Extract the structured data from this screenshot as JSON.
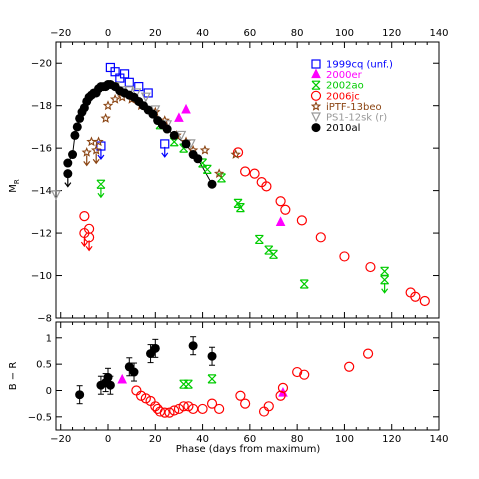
{
  "chart_data": [
    {
      "type": "scatter",
      "title": "",
      "xlabel": "Phase (days from maximum)",
      "ylabel": "M_R",
      "ylim": [
        -8,
        -21
      ],
      "xlim": [
        -22,
        140
      ],
      "x_ticks": [
        -20,
        0,
        20,
        40,
        60,
        80,
        100,
        120,
        140
      ],
      "y_ticks": [
        -20,
        -18,
        -16,
        -14,
        -12,
        -10,
        -8
      ],
      "y_tick_labels": [
        "−20",
        "−18",
        "−16",
        "−14",
        "−12",
        "−10",
        "−8"
      ],
      "x_tick_labels": [
        "−20",
        "0",
        "20",
        "40",
        "60",
        "80",
        "100",
        "120",
        "140"
      ],
      "grid": false,
      "legend_position": "top-right",
      "series": [
        {
          "name": "1999cq (unf.)",
          "color": "#0000ff",
          "marker": "square",
          "points": [
            [
              1,
              -19.8
            ],
            [
              3,
              -19.6
            ],
            [
              5,
              -19.3
            ],
            [
              7,
              -19.5
            ],
            [
              9,
              -19.1
            ],
            [
              13,
              -18.9
            ],
            [
              17,
              -18.6
            ]
          ],
          "limits": [
            [
              -3,
              -16.1
            ],
            [
              24,
              -16.2
            ]
          ]
        },
        {
          "name": "2000er",
          "color": "#ff00ff",
          "marker": "triangle",
          "points": [
            [
              33,
              -17.8
            ],
            [
              73,
              -12.5
            ],
            [
              30,
              -17.4
            ]
          ]
        },
        {
          "name": "2002ao",
          "color": "#00cc00",
          "marker": "star4",
          "points": [
            [
              28,
              -16.3
            ],
            [
              32,
              -16.0
            ],
            [
              40,
              -15.3
            ],
            [
              42,
              -15.0
            ],
            [
              48,
              -14.6
            ],
            [
              55,
              -13.4
            ],
            [
              56,
              -13.2
            ],
            [
              64,
              -11.7
            ],
            [
              68,
              -11.2
            ],
            [
              70,
              -11.0
            ],
            [
              83,
              -9.6
            ],
            [
              117,
              -10.2
            ],
            [
              22,
              -17.1
            ]
          ],
          "limits": [
            [
              -3,
              -14.3
            ],
            [
              117,
              -9.8
            ]
          ]
        },
        {
          "name": "2006jc",
          "color": "#ff0000",
          "marker": "circle-open",
          "points": [
            [
              -10,
              -12.8
            ],
            [
              -8,
              -12.2
            ],
            [
              55,
              -15.8
            ],
            [
              58,
              -14.9
            ],
            [
              62,
              -14.8
            ],
            [
              65,
              -14.4
            ],
            [
              67,
              -14.2
            ],
            [
              73,
              -13.5
            ],
            [
              75,
              -13.1
            ],
            [
              82,
              -12.6
            ],
            [
              90,
              -11.8
            ],
            [
              100,
              -10.9
            ],
            [
              111,
              -10.4
            ],
            [
              128,
              -9.2
            ],
            [
              130,
              -9.0
            ],
            [
              134,
              -8.8
            ]
          ],
          "limits": [
            [
              -10,
              -12.0
            ],
            [
              -8,
              -11.8
            ]
          ]
        },
        {
          "name": "iPTF-13beo",
          "color": "#8b4513",
          "marker": "star",
          "points": [
            [
              -7,
              -16.3
            ],
            [
              -4,
              -16.3
            ],
            [
              -1,
              -17.4
            ],
            [
              0,
              -18.0
            ],
            [
              3,
              -18.3
            ],
            [
              6,
              -18.4
            ],
            [
              10,
              -18.3
            ],
            [
              14,
              -18.0
            ],
            [
              20,
              -17.7
            ],
            [
              24,
              -17.3
            ],
            [
              29,
              -16.6
            ],
            [
              33,
              -16.3
            ],
            [
              36,
              -15.9
            ],
            [
              41,
              -15.9
            ],
            [
              47,
              -14.8
            ],
            [
              54,
              -15.7
            ]
          ],
          "limits": [
            [
              -9,
              -15.8
            ],
            [
              -5,
              -15.9
            ]
          ]
        },
        {
          "name": "PS1-12sk (r)",
          "color": "#999999",
          "marker": "triangle-down",
          "points": [
            [
              -22,
              -13.8
            ],
            [
              3,
              -18.9
            ],
            [
              6,
              -18.7
            ],
            [
              9,
              -18.7
            ],
            [
              12,
              -18.6
            ],
            [
              16,
              -18.4
            ],
            [
              20,
              -17.8
            ],
            [
              25,
              -17.1
            ],
            [
              31,
              -16.6
            ],
            [
              35,
              -16.2
            ]
          ]
        },
        {
          "name": "2010al",
          "color": "#000000",
          "marker": "circle-filled",
          "points": [
            [
              -17,
              -15.3
            ],
            [
              -15,
              -15.7
            ],
            [
              -14,
              -16.6
            ],
            [
              -13,
              -17.0
            ],
            [
              -12,
              -17.4
            ],
            [
              -11,
              -17.7
            ],
            [
              -10,
              -17.9
            ],
            [
              -9,
              -18.2
            ],
            [
              -8,
              -18.4
            ],
            [
              -7,
              -18.5
            ],
            [
              -6,
              -18.6
            ],
            [
              -5,
              -18.6
            ],
            [
              -4,
              -18.8
            ],
            [
              -3,
              -18.9
            ],
            [
              -2,
              -18.9
            ],
            [
              -1,
              -18.9
            ],
            [
              0,
              -19.0
            ],
            [
              1,
              -19.0
            ],
            [
              3,
              -18.9
            ],
            [
              5,
              -18.7
            ],
            [
              7,
              -18.6
            ],
            [
              9,
              -18.5
            ],
            [
              11,
              -18.4
            ],
            [
              13,
              -18.2
            ],
            [
              15,
              -18.0
            ],
            [
              17,
              -17.8
            ],
            [
              19,
              -17.6
            ],
            [
              21,
              -17.3
            ],
            [
              23,
              -17.1
            ],
            [
              25,
              -16.9
            ],
            [
              28,
              -16.6
            ],
            [
              33,
              -16.2
            ],
            [
              36,
              -15.7
            ],
            [
              38,
              -15.5
            ],
            [
              44,
              -14.3
            ]
          ],
          "limits": [
            [
              -17,
              -14.8
            ]
          ]
        }
      ]
    },
    {
      "type": "scatter",
      "title": "",
      "xlabel": "Phase (days from maximum)",
      "ylabel": "B − R",
      "ylim": [
        -0.75,
        1.3
      ],
      "xlim": [
        -22,
        140
      ],
      "x_ticks": [
        -20,
        0,
        20,
        40,
        60,
        80,
        100,
        120,
        140
      ],
      "y_ticks": [
        -0.5,
        0,
        0.5,
        1
      ],
      "y_tick_labels": [
        "−0.5",
        "0",
        "0.5",
        "1"
      ],
      "x_tick_labels": [
        "−20",
        "0",
        "20",
        "40",
        "60",
        "80",
        "100",
        "120",
        "140"
      ],
      "grid": false,
      "series": [
        {
          "name": "2010al",
          "color": "#000000",
          "marker": "circle-filled",
          "points": [
            [
              -12,
              -0.08
            ],
            [
              -3,
              0.1
            ],
            [
              -1,
              0.15
            ],
            [
              0,
              0.25
            ],
            [
              1,
              0.1
            ],
            [
              9,
              0.45
            ],
            [
              11,
              0.35
            ],
            [
              18,
              0.7
            ],
            [
              20,
              0.8
            ],
            [
              36,
              0.85
            ],
            [
              44,
              0.65
            ]
          ]
        },
        {
          "name": "2000er",
          "color": "#ff00ff",
          "marker": "triangle",
          "points": [
            [
              6,
              0.2
            ],
            [
              74,
              -0.05
            ]
          ]
        },
        {
          "name": "2002ao",
          "color": "#00cc00",
          "marker": "star4",
          "points": [
            [
              32,
              0.12
            ],
            [
              34,
              0.12
            ],
            [
              44,
              0.22
            ]
          ]
        },
        {
          "name": "2006jc",
          "color": "#ff0000",
          "marker": "circle-open",
          "points": [
            [
              12,
              0.0
            ],
            [
              14,
              -0.1
            ],
            [
              16,
              -0.15
            ],
            [
              18,
              -0.2
            ],
            [
              20,
              -0.3
            ],
            [
              21,
              -0.35
            ],
            [
              22,
              -0.4
            ],
            [
              24,
              -0.42
            ],
            [
              26,
              -0.42
            ],
            [
              28,
              -0.38
            ],
            [
              30,
              -0.35
            ],
            [
              32,
              -0.3
            ],
            [
              34,
              -0.3
            ],
            [
              36,
              -0.35
            ],
            [
              40,
              -0.35
            ],
            [
              44,
              -0.25
            ],
            [
              47,
              -0.35
            ],
            [
              56,
              -0.1
            ],
            [
              58,
              -0.25
            ],
            [
              66,
              -0.4
            ],
            [
              68,
              -0.3
            ],
            [
              73,
              -0.1
            ],
            [
              74,
              0.05
            ],
            [
              80,
              0.35
            ],
            [
              83,
              0.3
            ],
            [
              102,
              0.45
            ],
            [
              110,
              0.7
            ]
          ]
        },
        {
          "name": "iPTF-13beo",
          "color": "#8b4513",
          "marker": "star",
          "points": []
        }
      ]
    }
  ]
}
